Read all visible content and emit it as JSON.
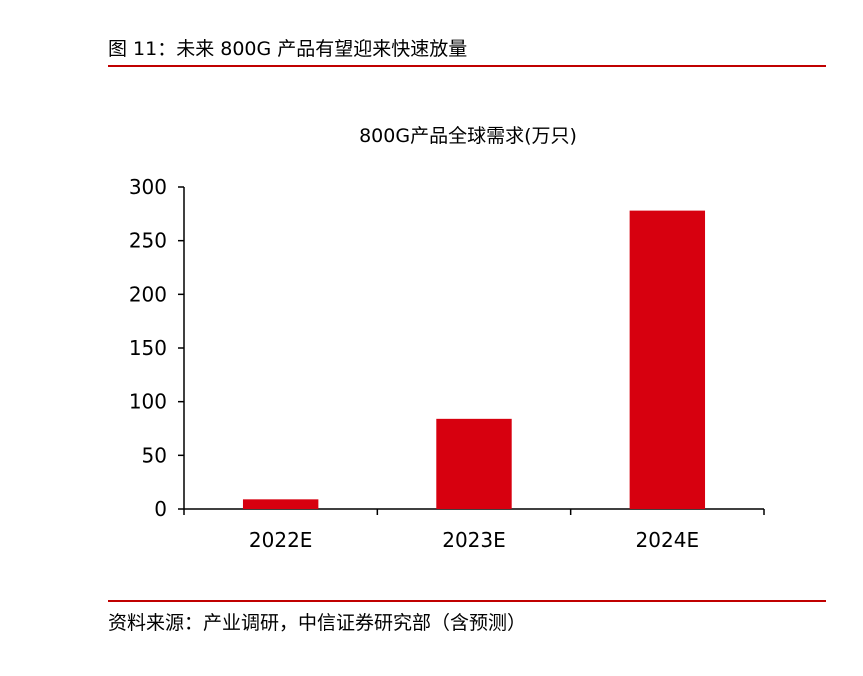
{
  "figure": {
    "title": "图 11：未来 800G 产品有望迎来快速放量",
    "source": "资料来源：产业调研，中信证券研究部（含预测）"
  },
  "colors": {
    "accent": "#c00000",
    "bar": "#d7000f",
    "axis": "#000000"
  },
  "chart_data": {
    "type": "bar",
    "title": "800G产品全球需求(万只)",
    "xlabel": "",
    "ylabel": "",
    "categories": [
      "2022E",
      "2023E",
      "2024E"
    ],
    "values": [
      9,
      84,
      278
    ],
    "ylim": [
      0,
      300
    ],
    "yticks": [
      0,
      50,
      100,
      150,
      200,
      250,
      300
    ],
    "grid": false,
    "legend": "none"
  }
}
